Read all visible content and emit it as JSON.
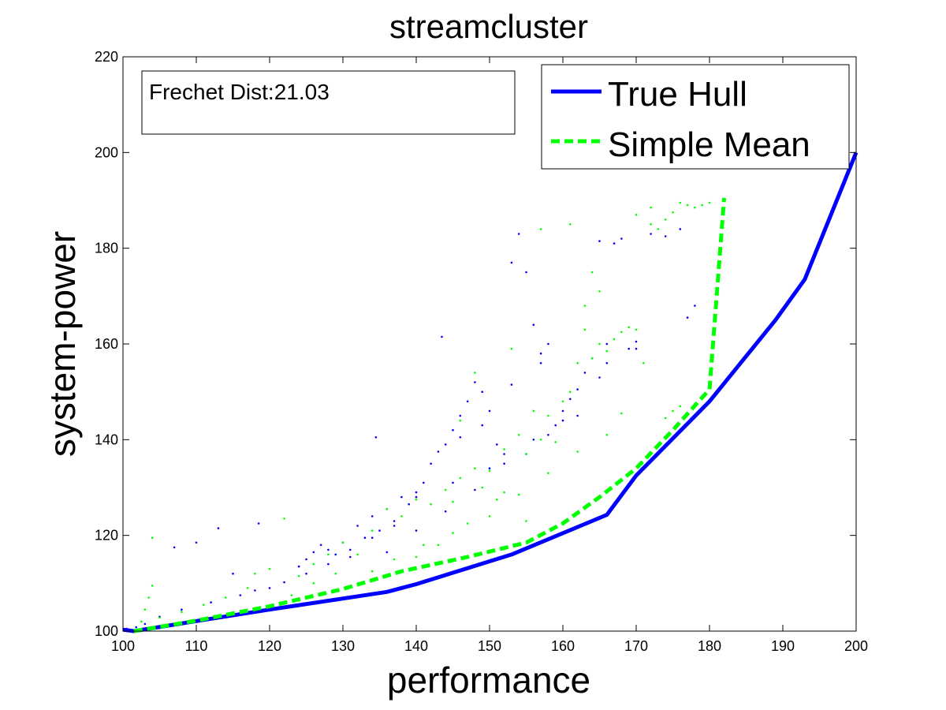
{
  "chart_data": {
    "type": "line",
    "title": "streamcluster",
    "xlabel": "performance",
    "ylabel": "system-power",
    "xlim": [
      100,
      200
    ],
    "ylim": [
      100,
      220
    ],
    "xticks": [
      100,
      110,
      120,
      130,
      140,
      150,
      160,
      170,
      180,
      190,
      200
    ],
    "yticks": [
      100,
      120,
      140,
      160,
      180,
      200,
      220
    ],
    "grid": false,
    "legend_position": "top-right",
    "annotation": "Frechet Dist:21.03",
    "series": [
      {
        "name": "True Hull",
        "style": "solid",
        "color": "#0000ff",
        "points": [
          [
            100,
            100.3
          ],
          [
            101.5,
            100
          ],
          [
            110,
            102.1
          ],
          [
            120,
            104.5
          ],
          [
            136,
            108.2
          ],
          [
            140,
            109.8
          ],
          [
            153,
            116
          ],
          [
            166,
            124.3
          ],
          [
            170,
            132.5
          ],
          [
            180,
            148
          ],
          [
            189,
            165
          ],
          [
            193,
            173.5
          ],
          [
            200,
            200
          ]
        ]
      },
      {
        "name": "Simple Mean",
        "style": "dashed",
        "color": "#00ff00",
        "points": [
          [
            101.5,
            100
          ],
          [
            110,
            102.2
          ],
          [
            120,
            105.2
          ],
          [
            130,
            108.8
          ],
          [
            138,
            112.5
          ],
          [
            147,
            115.5
          ],
          [
            155,
            118.5
          ],
          [
            160,
            122.5
          ],
          [
            165,
            128
          ],
          [
            170,
            134
          ],
          [
            175,
            142
          ],
          [
            180,
            150.5
          ],
          [
            182,
            190.5
          ]
        ]
      }
    ],
    "scatter_series": [
      {
        "color": "#0000ff",
        "points": [
          [
            100.5,
            100.5
          ],
          [
            101.8,
            100.8
          ],
          [
            103,
            101.5
          ],
          [
            105,
            103
          ],
          [
            108,
            104.5
          ],
          [
            112,
            106
          ],
          [
            115,
            112
          ],
          [
            116,
            107.5
          ],
          [
            118,
            108.5
          ],
          [
            118.5,
            122.5
          ],
          [
            120,
            109
          ],
          [
            122,
            110.2
          ],
          [
            124,
            113.5
          ],
          [
            125,
            115
          ],
          [
            126,
            116.5
          ],
          [
            127,
            118
          ],
          [
            128,
            117
          ],
          [
            129,
            116
          ],
          [
            130,
            118.5
          ],
          [
            131,
            115.5
          ],
          [
            132,
            122
          ],
          [
            133,
            119.5
          ],
          [
            134,
            124
          ],
          [
            134.5,
            140.5
          ],
          [
            135,
            121
          ],
          [
            136,
            125.5
          ],
          [
            137,
            123
          ],
          [
            138,
            128
          ],
          [
            139,
            126.5
          ],
          [
            140,
            129
          ],
          [
            141,
            131
          ],
          [
            142,
            135
          ],
          [
            143,
            137.5
          ],
          [
            143.5,
            161.5
          ],
          [
            144,
            139
          ],
          [
            145,
            142
          ],
          [
            146,
            145
          ],
          [
            147,
            148
          ],
          [
            148,
            152
          ],
          [
            149,
            150
          ],
          [
            150,
            146
          ],
          [
            151,
            139
          ],
          [
            152,
            137
          ],
          [
            153,
            177
          ],
          [
            154,
            183
          ],
          [
            155,
            175
          ],
          [
            156,
            164
          ],
          [
            157,
            158
          ],
          [
            158,
            160
          ],
          [
            159,
            143
          ],
          [
            160,
            146
          ],
          [
            161,
            148.5
          ],
          [
            162,
            150.5
          ],
          [
            163,
            154
          ],
          [
            164,
            157
          ],
          [
            165,
            153
          ],
          [
            166,
            160
          ],
          [
            167,
            181
          ],
          [
            168,
            182
          ],
          [
            169,
            159
          ],
          [
            170,
            159
          ],
          [
            172,
            183
          ],
          [
            174,
            182.5
          ],
          [
            176,
            184
          ],
          [
            177,
            165.5
          ],
          [
            178,
            168
          ],
          [
            110,
            118.5
          ],
          [
            107,
            117.5
          ],
          [
            113,
            121.5
          ],
          [
            136,
            116.5
          ],
          [
            140,
            121
          ],
          [
            144,
            125
          ],
          [
            148,
            129.5
          ],
          [
            152,
            135
          ],
          [
            156,
            140
          ],
          [
            160,
            144
          ],
          [
            140,
            128
          ],
          [
            145,
            131
          ],
          [
            150,
            134
          ],
          [
            155,
            137
          ],
          [
            158,
            141
          ],
          [
            162,
            145
          ],
          [
            125,
            112
          ],
          [
            128,
            114
          ],
          [
            131,
            117
          ],
          [
            134,
            119.5
          ],
          [
            137,
            122
          ],
          [
            146,
            140.5
          ],
          [
            149,
            143
          ],
          [
            153,
            151.5
          ],
          [
            157,
            156
          ],
          [
            165,
            181.5
          ],
          [
            166,
            156
          ],
          [
            170,
            160.5
          ]
        ]
      },
      {
        "color": "#00ff00",
        "points": [
          [
            101.5,
            100.2
          ],
          [
            102.5,
            102
          ],
          [
            103,
            104.5
          ],
          [
            103.5,
            107
          ],
          [
            104,
            109.5
          ],
          [
            104,
            119.5
          ],
          [
            105,
            102.8
          ],
          [
            108,
            104
          ],
          [
            111,
            105.5
          ],
          [
            114,
            107
          ],
          [
            117,
            109
          ],
          [
            118,
            112
          ],
          [
            120,
            113
          ],
          [
            122,
            123.5
          ],
          [
            124,
            111.5
          ],
          [
            126,
            114
          ],
          [
            128,
            116
          ],
          [
            130,
            118.5
          ],
          [
            132,
            116
          ],
          [
            134,
            121
          ],
          [
            136,
            125.5
          ],
          [
            138,
            124
          ],
          [
            140,
            127.5
          ],
          [
            142,
            126.5
          ],
          [
            144,
            129.5
          ],
          [
            145,
            127
          ],
          [
            146,
            132
          ],
          [
            148,
            134
          ],
          [
            149,
            130
          ],
          [
            150,
            133.5
          ],
          [
            151,
            127.5
          ],
          [
            152,
            138
          ],
          [
            154,
            141
          ],
          [
            155,
            137
          ],
          [
            156,
            146
          ],
          [
            157,
            140
          ],
          [
            158,
            145
          ],
          [
            159,
            139.5
          ],
          [
            160,
            148
          ],
          [
            161,
            150
          ],
          [
            162,
            156
          ],
          [
            163,
            163
          ],
          [
            164,
            157
          ],
          [
            165,
            160
          ],
          [
            166,
            158.5
          ],
          [
            167,
            161
          ],
          [
            168,
            162.5
          ],
          [
            169,
            163.5
          ],
          [
            170,
            163
          ],
          [
            171,
            156
          ],
          [
            172,
            185
          ],
          [
            173,
            184
          ],
          [
            174,
            186
          ],
          [
            175,
            187.5
          ],
          [
            176,
            189.5
          ],
          [
            177,
            189
          ],
          [
            178,
            188.5
          ],
          [
            179,
            189
          ],
          [
            180,
            189.5
          ],
          [
            164,
            175
          ],
          [
            165,
            171
          ],
          [
            161,
            185
          ],
          [
            157,
            184
          ],
          [
            163,
            168
          ],
          [
            170,
            187
          ],
          [
            172,
            188.5
          ],
          [
            174,
            144.5
          ],
          [
            175,
            146
          ],
          [
            176,
            147
          ],
          [
            178,
            147.5
          ],
          [
            141,
            118
          ],
          [
            145,
            120.5
          ],
          [
            150,
            124
          ],
          [
            154,
            128.5
          ],
          [
            158,
            133
          ],
          [
            162,
            137.5
          ],
          [
            166,
            141
          ],
          [
            168,
            145.5
          ],
          [
            134,
            112.5
          ],
          [
            137,
            115
          ],
          [
            140,
            115.5
          ],
          [
            143,
            118
          ],
          [
            147,
            122.5
          ],
          [
            152,
            129
          ],
          [
            155,
            123
          ],
          [
            153,
            159
          ],
          [
            148,
            154
          ],
          [
            146,
            144
          ],
          [
            126,
            110
          ],
          [
            123,
            107.5
          ],
          [
            129,
            112
          ]
        ]
      }
    ]
  }
}
